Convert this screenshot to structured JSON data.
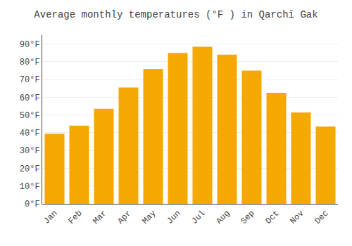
{
  "chart_data": {
    "type": "bar",
    "title": "Average monthly temperatures (°F ) in Qarchī Gak",
    "categories": [
      "Jan",
      "Feb",
      "Mar",
      "Apr",
      "May",
      "Jun",
      "Jul",
      "Aug",
      "Sep",
      "Oct",
      "Nov",
      "Dec"
    ],
    "values": [
      39.5,
      44.0,
      53.5,
      65.5,
      76.0,
      85.0,
      88.5,
      84.0,
      75.0,
      62.5,
      51.5,
      43.5
    ],
    "color": "#F5A800",
    "ylim": [
      0,
      95
    ],
    "yticks": [
      {
        "value": 0,
        "label": "0°F"
      },
      {
        "value": 10,
        "label": "10°F"
      },
      {
        "value": 20,
        "label": "20°F"
      },
      {
        "value": 30,
        "label": "30°F"
      },
      {
        "value": 40,
        "label": "40°F"
      },
      {
        "value": 50,
        "label": "50°F"
      },
      {
        "value": 60,
        "label": "60°F"
      },
      {
        "value": 70,
        "label": "70°F"
      },
      {
        "value": 80,
        "label": "80°F"
      },
      {
        "value": 90,
        "label": "90°F"
      }
    ],
    "grid": true
  }
}
